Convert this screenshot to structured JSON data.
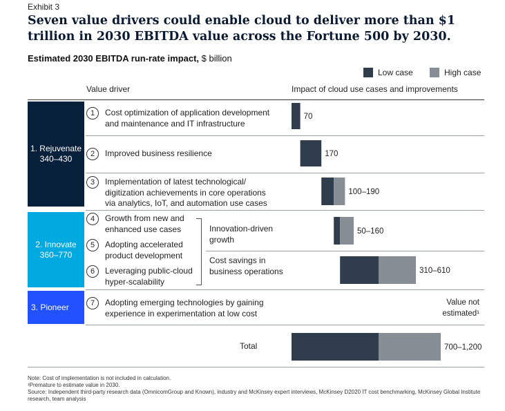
{
  "exhibit": "Exhibit 3",
  "title": "Seven value drivers could enable cloud to deliver more than $1 trillion in 2030 EBITDA value across the Fortune 500 by 2030.",
  "subtitle_bold": "Estimated 2030 EBITDA run-rate impact,",
  "subtitle_unit": " $ billion",
  "legend": [
    {
      "name": "Low case",
      "color": "#2f3d4c"
    },
    {
      "name": "High case",
      "color": "#878e96"
    }
  ],
  "column_headers": {
    "driver": "Value driver",
    "impact": "Impact of cloud use cases and improvements"
  },
  "groups": [
    {
      "name": "1. Rejuvenate",
      "range": "340–430",
      "color": "#061f3b"
    },
    {
      "name": "2. Innovate",
      "range": "360–770",
      "color": "#00a9e0"
    },
    {
      "name": "3. Pioneer",
      "range": "",
      "color": "#2251ff"
    }
  ],
  "drivers": [
    {
      "num": "1",
      "text": "Cost optimization of application development and maintenance and IT infrastructure"
    },
    {
      "num": "2",
      "text": "Improved business resilience"
    },
    {
      "num": "3",
      "text": "Implementation of latest technological/ digitization achievements in core operations via analytics, IoT, and automation use cases"
    },
    {
      "num": "4",
      "text": "Growth from new and enhanced use cases"
    },
    {
      "num": "5",
      "text": "Adopting accelerated product development"
    },
    {
      "num": "6",
      "text": "Leveraging public-cloud hyper-scalability"
    },
    {
      "num": "7",
      "text": "Adopting emerging technologies by gaining experience in experimentation at low cost"
    }
  ],
  "sub_groups": [
    {
      "label": "Innovation-driven growth"
    },
    {
      "label": "Cost savings in business operations"
    }
  ],
  "total_label": "Total",
  "not_estimated": "Value not estimated¹",
  "notes": {
    "note1": "Note: Cost of implementation is not included in calculation.",
    "note2": "¹Premature to estimate value in 2030.",
    "note3": "Source: Independent third-party research data (OmnicomGroup and Known), industry and McKinsey expert interviews, McKinsey D2020 IT cost benchmarking, McKinsey Global Institute research, team analysis"
  },
  "chart_data": {
    "type": "bar",
    "orientation": "horizontal-waterfall",
    "title": "Estimated 2030 EBITDA run-rate impact",
    "unit": "$ billion",
    "categories": [
      "Driver 1",
      "Driver 2",
      "Driver 3",
      "Innovation-driven growth",
      "Cost savings in business operations",
      "Total"
    ],
    "series": [
      {
        "name": "Low case",
        "values": [
          70,
          170,
          100,
          50,
          310,
          700
        ]
      },
      {
        "name": "High case",
        "values": [
          70,
          170,
          190,
          160,
          610,
          1200
        ]
      }
    ],
    "data_labels": [
      "70",
      "170",
      "100–190",
      "50–160",
      "310–610",
      "700–1,200"
    ]
  }
}
